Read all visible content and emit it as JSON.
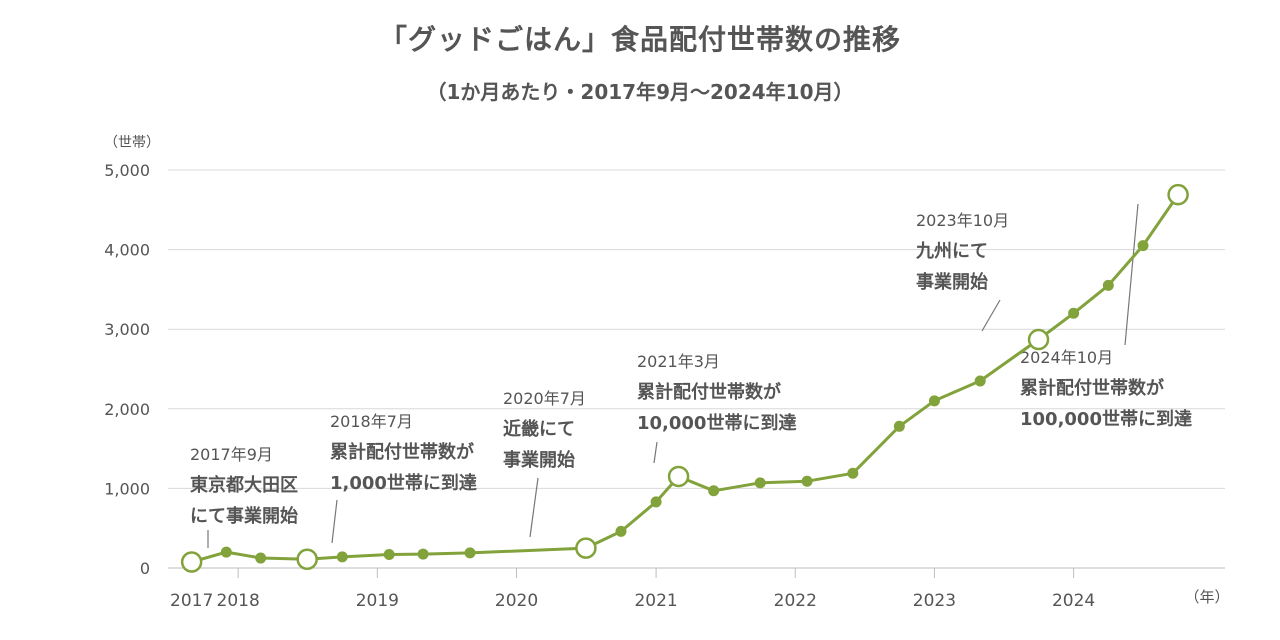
{
  "chart_data": {
    "type": "line",
    "title": "「グッドごはん」食品配付世帯数の推移",
    "subtitle": "（1か月あたり・2017年9月〜2024年10月）",
    "ylabel": "（世帯）",
    "xlabel": "（年）",
    "ylim": [
      0,
      5000
    ],
    "yticks": [
      {
        "value": 0,
        "label": "0"
      },
      {
        "value": 1000,
        "label": "1,000"
      },
      {
        "value": 2000,
        "label": "2,000"
      },
      {
        "value": 3000,
        "label": "3,000"
      },
      {
        "value": 4000,
        "label": "4,000"
      },
      {
        "value": 5000,
        "label": "5,000"
      }
    ],
    "xlim": [
      "2017-07-01",
      "2025-02-01"
    ],
    "xticks": [
      {
        "date": "2017-09-01",
        "label": "2017"
      },
      {
        "date": "2018-01-01",
        "label": "2018"
      },
      {
        "date": "2019-01-01",
        "label": "2019"
      },
      {
        "date": "2020-01-01",
        "label": "2020"
      },
      {
        "date": "2021-01-01",
        "label": "2021"
      },
      {
        "date": "2022-01-01",
        "label": "2022"
      },
      {
        "date": "2023-01-01",
        "label": "2023"
      },
      {
        "date": "2024-01-01",
        "label": "2024"
      }
    ],
    "color": "#82a23b",
    "grid": true,
    "series": [
      {
        "points": [
          {
            "x": "2017-09-01",
            "y": 75
          },
          {
            "x": "2017-12-01",
            "y": 200
          },
          {
            "x": "2018-03-01",
            "y": 125
          },
          {
            "x": "2018-07-01",
            "y": 110
          },
          {
            "x": "2018-10-01",
            "y": 140
          },
          {
            "x": "2019-02-01",
            "y": 170
          },
          {
            "x": "2019-05-01",
            "y": 175
          },
          {
            "x": "2019-09-01",
            "y": 190
          },
          {
            "x": "2020-07-01",
            "y": 250
          },
          {
            "x": "2020-10-01",
            "y": 460
          },
          {
            "x": "2021-01-01",
            "y": 830
          },
          {
            "x": "2021-03-01",
            "y": 1150
          },
          {
            "x": "2021-06-01",
            "y": 970
          },
          {
            "x": "2021-10-01",
            "y": 1070
          },
          {
            "x": "2022-02-01",
            "y": 1090
          },
          {
            "x": "2022-06-01",
            "y": 1190
          },
          {
            "x": "2022-10-01",
            "y": 1780
          },
          {
            "x": "2023-01-01",
            "y": 2100
          },
          {
            "x": "2023-05-01",
            "y": 2350
          },
          {
            "x": "2023-10-01",
            "y": 2870
          },
          {
            "x": "2024-01-01",
            "y": 3200
          },
          {
            "x": "2024-04-01",
            "y": 3550
          },
          {
            "x": "2024-07-01",
            "y": 4050
          },
          {
            "x": "2024-10-01",
            "y": 4690
          }
        ]
      }
    ],
    "highlight_points": [
      "2017-09-01",
      "2018-07-01",
      "2020-07-01",
      "2021-03-01",
      "2023-10-01",
      "2024-10-01"
    ],
    "annotations": [
      {
        "lines": [
          "2017年9月",
          "東京都大田区",
          "にて事業開始"
        ],
        "target": "2017-09-01"
      },
      {
        "lines": [
          "2018年7月",
          "累計配付世帯数が",
          "1,000世帯に到達"
        ],
        "target": "2018-07-01"
      },
      {
        "lines": [
          "2020年7月",
          "近畿にて",
          "事業開始"
        ],
        "target": "2020-07-01"
      },
      {
        "lines": [
          "2021年3月",
          "累計配付世帯数が",
          "10,000世帯に到達"
        ],
        "target": "2021-03-01"
      },
      {
        "lines": [
          "2023年10月",
          "九州にて",
          "事業開始"
        ],
        "target": "2023-10-01"
      },
      {
        "lines": [
          "2024年10月",
          "累計配付世帯数が",
          "100,000世帯に到達"
        ],
        "target": "2024-10-01"
      }
    ]
  }
}
